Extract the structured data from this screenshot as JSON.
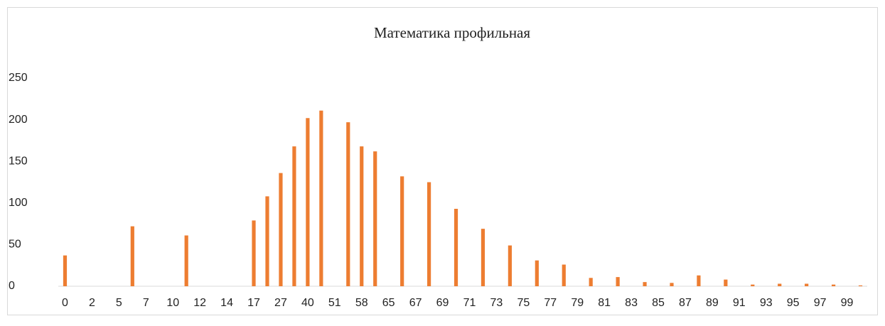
{
  "chart_data": {
    "type": "bar",
    "title": "Математика профильная",
    "categories": [
      "0",
      null,
      "2",
      null,
      "5",
      null,
      "7",
      null,
      "10",
      null,
      "12",
      null,
      "14",
      null,
      "17",
      null,
      "27",
      null,
      "40",
      null,
      "51",
      null,
      "58",
      null,
      "65",
      null,
      "67",
      null,
      "69",
      null,
      "71",
      null,
      "73",
      null,
      "75",
      null,
      "77",
      null,
      "79",
      null,
      "81",
      null,
      "83",
      null,
      "85",
      null,
      "87",
      null,
      "89",
      null,
      "91",
      null,
      "93",
      null,
      "95",
      null,
      "97",
      null,
      "99",
      null
    ],
    "values": [
      37,
      0,
      0,
      0,
      0,
      72,
      0,
      0,
      0,
      61,
      0,
      0,
      0,
      0,
      79,
      108,
      136,
      168,
      202,
      211,
      0,
      197,
      168,
      162,
      0,
      132,
      0,
      125,
      0,
      93,
      0,
      69,
      0,
      49,
      0,
      31,
      0,
      26,
      0,
      10,
      0,
      11,
      0,
      5,
      0,
      4,
      0,
      13,
      0,
      8,
      0,
      2,
      0,
      3,
      0,
      3,
      0,
      2,
      0,
      1
    ],
    "color": "#ed7d31",
    "ylim": [
      0,
      250
    ],
    "yticks": [
      0,
      50,
      100,
      150,
      200,
      250
    ],
    "grid": false
  }
}
